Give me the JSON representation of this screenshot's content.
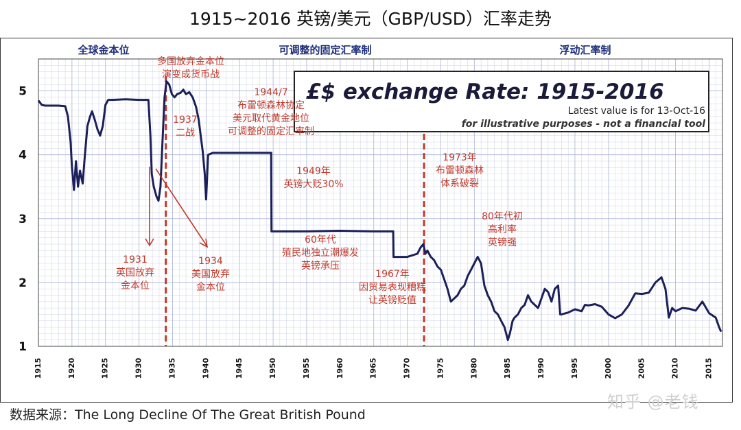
{
  "title": "1915~2016 英镑/美元（GBP/USD）汇率走势",
  "source": "数据来源：The Long Decline Of The Great British Pound",
  "watermark": "知乎 @老钱",
  "colors": {
    "line": "#1b1f5a",
    "grid": "#aab4d6",
    "annotation": "#c0392b",
    "era": "#1f2f7a",
    "background": "#ffffff"
  },
  "eras": [
    {
      "label": "全球金本位"
    },
    {
      "label": "可调整的固定汇率制"
    },
    {
      "label": "浮动汇率制"
    }
  ],
  "inset": {
    "title": "£$ exchange Rate: 1915-2016",
    "latest": "Latest value is for 13-Oct-16",
    "note": "for illustrative purposes - not a financial tool"
  },
  "annotations": [
    {
      "lines": [
        "多国放弃金本位",
        "演变成货币战"
      ]
    },
    {
      "lines": [
        "1937",
        "二战"
      ]
    },
    {
      "lines": [
        "1944/7",
        "布雷顿森林协定",
        "美元取代黄金地位",
        "可调整的固定汇率制"
      ]
    },
    {
      "lines": [
        "1949年",
        "英镑大贬30%"
      ]
    },
    {
      "lines": [
        "1973年",
        "布雷顿森林",
        "体系破裂"
      ]
    },
    {
      "lines": [
        "80年代初",
        "高利率",
        "英镑强"
      ]
    },
    {
      "lines": [
        "60年代",
        "殖民地独立潮爆发",
        "英镑承压"
      ]
    },
    {
      "lines": [
        "1967年",
        "因贸易表现糟糕",
        "让英镑贬值"
      ]
    },
    {
      "lines": [
        "1931",
        "英国放弃",
        "金本位"
      ]
    },
    {
      "lines": [
        "1934",
        "美国放弃",
        "金本位"
      ]
    }
  ],
  "chart_data": {
    "type": "line",
    "title": "£$ exchange Rate: 1915-2016",
    "xlabel": "",
    "ylabel": "",
    "xlim": [
      1915,
      2017
    ],
    "ylim": [
      1,
      5.5
    ],
    "x_ticks": [
      1915,
      1920,
      1925,
      1930,
      1935,
      1940,
      1945,
      1950,
      1955,
      1960,
      1965,
      1970,
      1975,
      1980,
      1985,
      1990,
      1995,
      2000,
      2005,
      2010,
      2015
    ],
    "y_ticks": [
      1,
      2,
      3,
      4,
      5
    ],
    "grid": true,
    "vlines": [
      1934,
      1972.5
    ],
    "series": [
      {
        "values": [
          [
            1915,
            4.85
          ],
          [
            1915.5,
            4.78
          ],
          [
            1916,
            4.77
          ],
          [
            1917,
            4.77
          ],
          [
            1918,
            4.77
          ],
          [
            1919,
            4.76
          ],
          [
            1919.4,
            4.6
          ],
          [
            1919.8,
            4.2
          ],
          [
            1920,
            3.8
          ],
          [
            1920.3,
            3.45
          ],
          [
            1920.6,
            3.9
          ],
          [
            1920.9,
            3.5
          ],
          [
            1921.2,
            3.75
          ],
          [
            1921.6,
            3.55
          ],
          [
            1921.9,
            3.95
          ],
          [
            1922.3,
            4.45
          ],
          [
            1922.7,
            4.6
          ],
          [
            1923,
            4.68
          ],
          [
            1923.4,
            4.55
          ],
          [
            1923.8,
            4.4
          ],
          [
            1924.2,
            4.3
          ],
          [
            1924.6,
            4.45
          ],
          [
            1925,
            4.78
          ],
          [
            1925.4,
            4.86
          ],
          [
            1926,
            4.86
          ],
          [
            1928,
            4.87
          ],
          [
            1930,
            4.86
          ],
          [
            1931.4,
            4.86
          ],
          [
            1931.7,
            4.3
          ],
          [
            1931.9,
            3.7
          ],
          [
            1932.2,
            3.5
          ],
          [
            1932.6,
            3.35
          ],
          [
            1932.9,
            3.28
          ],
          [
            1933.2,
            3.5
          ],
          [
            1933.5,
            4.2
          ],
          [
            1933.8,
            4.9
          ],
          [
            1934.1,
            5.15
          ],
          [
            1934.5,
            5.1
          ],
          [
            1934.9,
            4.95
          ],
          [
            1935.3,
            4.9
          ],
          [
            1935.7,
            4.95
          ],
          [
            1936.2,
            4.97
          ],
          [
            1936.6,
            5.02
          ],
          [
            1937,
            4.95
          ],
          [
            1937.5,
            4.98
          ],
          [
            1938,
            4.9
          ],
          [
            1938.5,
            4.75
          ],
          [
            1938.9,
            4.55
          ],
          [
            1939.2,
            4.3
          ],
          [
            1939.5,
            4.05
          ],
          [
            1939.8,
            3.7
          ],
          [
            1940,
            3.3
          ],
          [
            1940.3,
            4.0
          ],
          [
            1941,
            4.03
          ],
          [
            1944,
            4.03
          ],
          [
            1946,
            4.03
          ],
          [
            1949.7,
            4.03
          ],
          [
            1949.75,
            2.8
          ],
          [
            1955,
            2.8
          ],
          [
            1960,
            2.81
          ],
          [
            1965,
            2.8
          ],
          [
            1967.9,
            2.8
          ],
          [
            1967.95,
            2.4
          ],
          [
            1970,
            2.4
          ],
          [
            1971.5,
            2.45
          ],
          [
            1972,
            2.55
          ],
          [
            1972.4,
            2.6
          ],
          [
            1972.7,
            2.45
          ],
          [
            1973,
            2.5
          ],
          [
            1973.5,
            2.4
          ],
          [
            1974,
            2.35
          ],
          [
            1974.5,
            2.25
          ],
          [
            1975,
            2.2
          ],
          [
            1975.5,
            2.05
          ],
          [
            1976,
            1.9
          ],
          [
            1976.5,
            1.7
          ],
          [
            1977,
            1.75
          ],
          [
            1977.5,
            1.8
          ],
          [
            1978,
            1.9
          ],
          [
            1978.5,
            1.95
          ],
          [
            1979,
            2.1
          ],
          [
            1979.5,
            2.2
          ],
          [
            1980,
            2.3
          ],
          [
            1980.5,
            2.4
          ],
          [
            1981,
            2.3
          ],
          [
            1981.5,
            1.95
          ],
          [
            1982,
            1.8
          ],
          [
            1982.5,
            1.7
          ],
          [
            1983,
            1.55
          ],
          [
            1983.5,
            1.5
          ],
          [
            1984,
            1.4
          ],
          [
            1984.5,
            1.3
          ],
          [
            1985,
            1.1
          ],
          [
            1985.3,
            1.2
          ],
          [
            1985.7,
            1.4
          ],
          [
            1986,
            1.45
          ],
          [
            1986.5,
            1.5
          ],
          [
            1987,
            1.6
          ],
          [
            1987.5,
            1.65
          ],
          [
            1988,
            1.8
          ],
          [
            1988.5,
            1.7
          ],
          [
            1989,
            1.65
          ],
          [
            1989.5,
            1.6
          ],
          [
            1990,
            1.75
          ],
          [
            1990.5,
            1.9
          ],
          [
            1991,
            1.85
          ],
          [
            1991.5,
            1.7
          ],
          [
            1992,
            1.9
          ],
          [
            1992.5,
            1.95
          ],
          [
            1992.8,
            1.5
          ],
          [
            1993,
            1.5
          ],
          [
            1994,
            1.53
          ],
          [
            1995,
            1.58
          ],
          [
            1996,
            1.55
          ],
          [
            1996.5,
            1.65
          ],
          [
            1997,
            1.64
          ],
          [
            1998,
            1.66
          ],
          [
            1999,
            1.62
          ],
          [
            2000,
            1.5
          ],
          [
            2001,
            1.44
          ],
          [
            2002,
            1.5
          ],
          [
            2003,
            1.64
          ],
          [
            2004,
            1.83
          ],
          [
            2005,
            1.82
          ],
          [
            2006,
            1.84
          ],
          [
            2007,
            2.0
          ],
          [
            2007.9,
            2.08
          ],
          [
            2008.5,
            1.9
          ],
          [
            2009,
            1.45
          ],
          [
            2009.5,
            1.6
          ],
          [
            2010,
            1.55
          ],
          [
            2011,
            1.6
          ],
          [
            2012,
            1.59
          ],
          [
            2013,
            1.56
          ],
          [
            2014,
            1.7
          ],
          [
            2015,
            1.52
          ],
          [
            2016,
            1.45
          ],
          [
            2016.5,
            1.3
          ],
          [
            2016.8,
            1.23
          ]
        ]
      }
    ]
  }
}
